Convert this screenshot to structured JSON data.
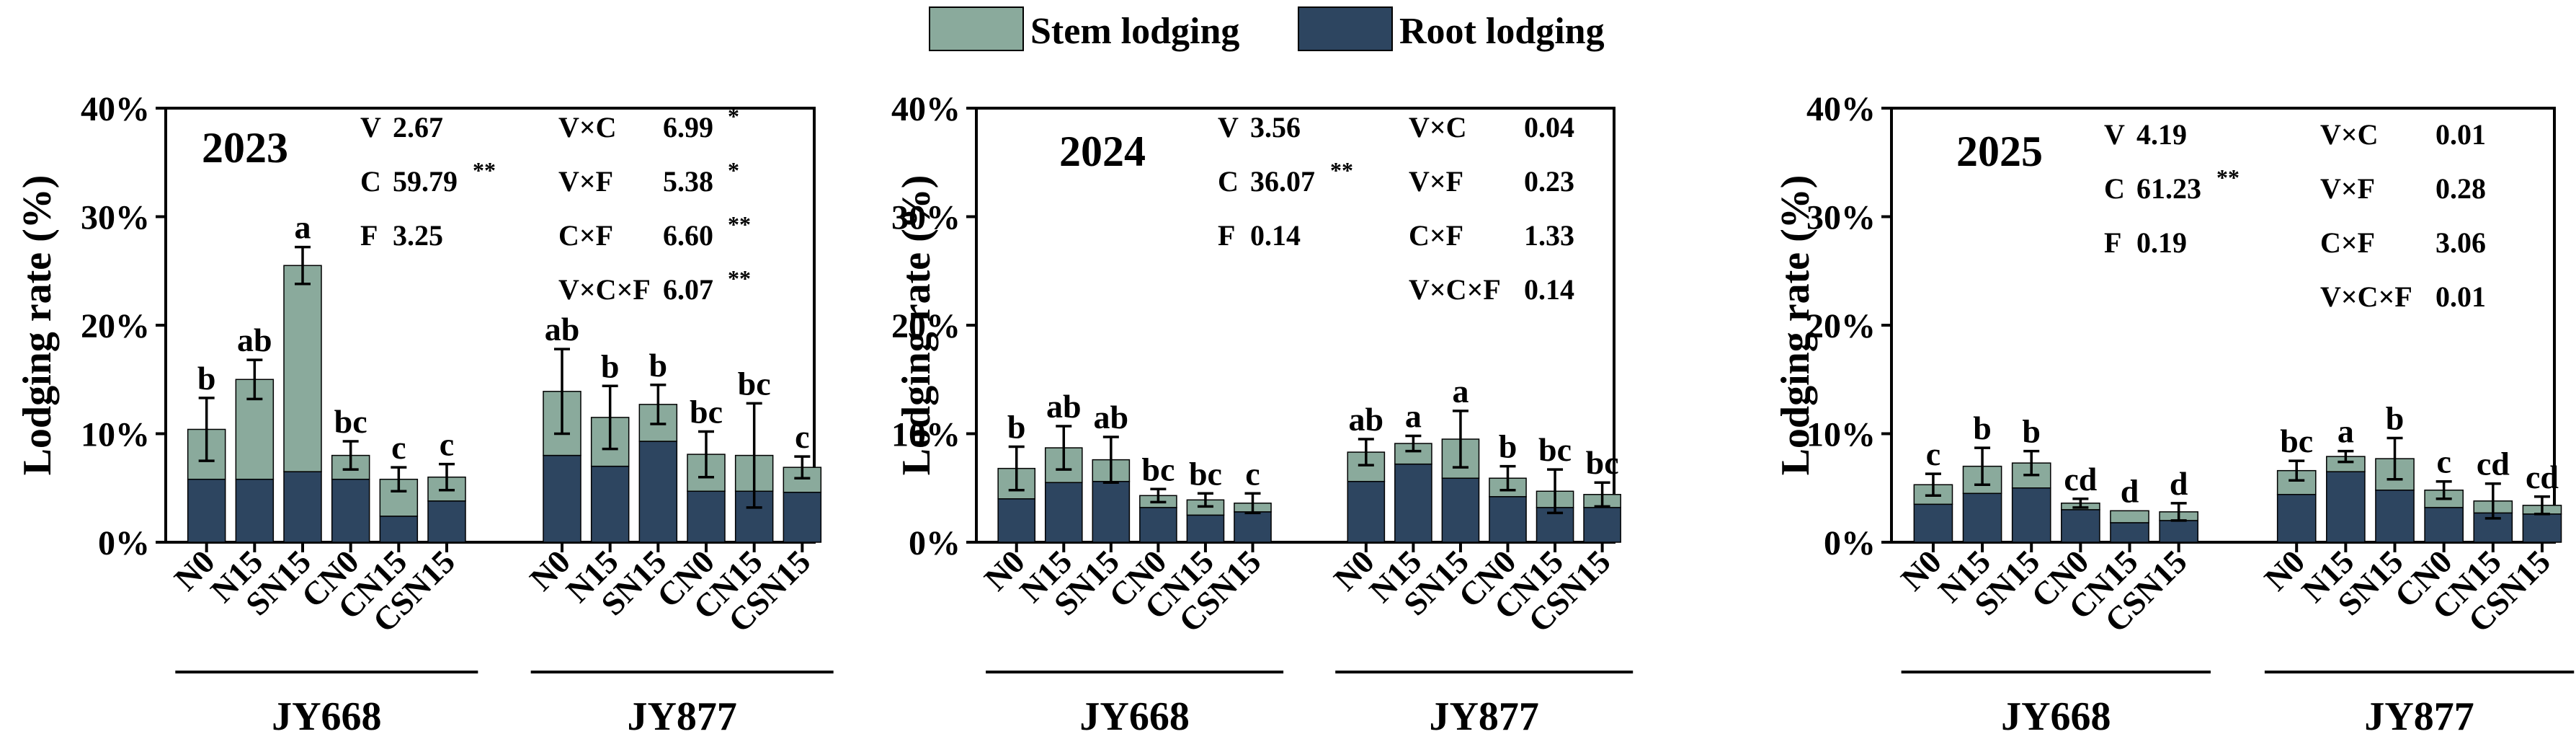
{
  "legend": {
    "items": [
      {
        "label": "Stem lodging",
        "color": "#8aaa9c"
      },
      {
        "label": "Root lodging",
        "color": "#2d4560"
      }
    ]
  },
  "colors": {
    "stem": "#8aaa9c",
    "root": "#2d4560",
    "axis": "#000000"
  },
  "chart_data": [
    {
      "type": "bar",
      "stacked": true,
      "year": "2023",
      "ylabel": "Lodging rate (%)",
      "ylim": [
        0,
        40
      ],
      "yticks": [
        "0%",
        "10%",
        "20%",
        "30%",
        "40%"
      ],
      "categories": [
        "N0",
        "N15",
        "SN15",
        "CN0",
        "CN15",
        "CSN15",
        "N0",
        "N15",
        "SN15",
        "CN0",
        "CN15",
        "CSN15"
      ],
      "groups": [
        {
          "label": "JY668"
        },
        {
          "label": "JY877"
        }
      ],
      "series": [
        {
          "name": "Root lodging",
          "values": [
            5.8,
            5.8,
            6.5,
            5.8,
            2.4,
            3.8,
            8.0,
            7.0,
            9.3,
            4.7,
            4.7,
            4.6
          ]
        },
        {
          "name": "Stem lodging",
          "values": [
            4.6,
            9.2,
            19.0,
            2.2,
            3.4,
            2.2,
            5.9,
            4.5,
            3.4,
            3.4,
            3.3,
            2.3
          ]
        }
      ],
      "totals": [
        10.4,
        15.0,
        25.5,
        8.0,
        5.8,
        6.0,
        13.9,
        11.5,
        12.7,
        8.1,
        8.0,
        6.9
      ],
      "errors": [
        2.9,
        1.8,
        1.7,
        1.3,
        1.1,
        1.2,
        3.9,
        2.9,
        1.8,
        2.1,
        4.8,
        1.0
      ],
      "letters": [
        "b",
        "ab",
        "a",
        "bc",
        "c",
        "c",
        "ab",
        "b",
        "b",
        "bc",
        "bc",
        "c"
      ],
      "stats_main": [
        {
          "label": "V",
          "value": "2.67",
          "sig": ""
        },
        {
          "label": "C",
          "value": "59.79",
          "sig": "**"
        },
        {
          "label": "F",
          "value": "3.25",
          "sig": ""
        }
      ],
      "stats_int": [
        {
          "label": "V×C",
          "value": "6.99",
          "sig": "*"
        },
        {
          "label": "V×F",
          "value": "5.38",
          "sig": "*"
        },
        {
          "label": "C×F",
          "value": "6.60",
          "sig": "**"
        },
        {
          "label": "V×C×F",
          "value": "6.07",
          "sig": "**"
        }
      ]
    },
    {
      "type": "bar",
      "stacked": true,
      "year": "2024",
      "ylabel": "Lodging rate (%)",
      "ylim": [
        0,
        40
      ],
      "yticks": [
        "0%",
        "10%",
        "20%",
        "30%",
        "40%"
      ],
      "categories": [
        "N0",
        "N15",
        "SN15",
        "CN0",
        "CN15",
        "CSN15",
        "N0",
        "N15",
        "SN15",
        "CN0",
        "CN15",
        "CSN15"
      ],
      "groups": [
        {
          "label": "JY668"
        },
        {
          "label": "JY877"
        }
      ],
      "series": [
        {
          "name": "Root lodging",
          "values": [
            4.0,
            5.5,
            5.6,
            3.2,
            2.5,
            2.8,
            5.6,
            7.2,
            5.9,
            4.2,
            3.2,
            3.2
          ]
        },
        {
          "name": "Stem lodging",
          "values": [
            2.8,
            3.2,
            2.0,
            1.1,
            1.4,
            0.8,
            2.7,
            1.9,
            3.6,
            1.7,
            1.5,
            1.2
          ]
        }
      ],
      "totals": [
        6.8,
        8.7,
        7.6,
        4.3,
        3.9,
        3.6,
        8.3,
        9.1,
        9.5,
        5.9,
        4.7,
        4.4
      ],
      "errors": [
        2.0,
        2.0,
        2.1,
        0.6,
        0.6,
        0.9,
        1.2,
        0.7,
        2.6,
        1.1,
        2.0,
        1.1
      ],
      "letters": [
        "b",
        "ab",
        "ab",
        "bc",
        "bc",
        "c",
        "ab",
        "a",
        "a",
        "b",
        "bc",
        "bc"
      ],
      "stats_main": [
        {
          "label": "V",
          "value": "3.56",
          "sig": ""
        },
        {
          "label": "C",
          "value": "36.07",
          "sig": "**"
        },
        {
          "label": "F",
          "value": "0.14",
          "sig": ""
        }
      ],
      "stats_int": [
        {
          "label": "V×C",
          "value": "0.04",
          "sig": ""
        },
        {
          "label": "V×F",
          "value": "0.23",
          "sig": ""
        },
        {
          "label": "C×F",
          "value": "1.33",
          "sig": ""
        },
        {
          "label": "V×C×F",
          "value": "0.14",
          "sig": ""
        }
      ]
    },
    {
      "type": "bar",
      "stacked": true,
      "year": "2025",
      "ylabel": "Lodging rate (%)",
      "ylim": [
        0,
        40
      ],
      "yticks": [
        "0%",
        "10%",
        "20%",
        "30%",
        "40%"
      ],
      "categories": [
        "N0",
        "N15",
        "SN15",
        "CN0",
        "CN15",
        "CSN15",
        "N0",
        "N15",
        "SN15",
        "CN0",
        "CN15",
        "CSN15"
      ],
      "groups": [
        {
          "label": "JY668"
        },
        {
          "label": "JY877"
        }
      ],
      "series": [
        {
          "name": "Root lodging",
          "values": [
            3.5,
            4.5,
            5.0,
            3.0,
            1.8,
            2.0,
            4.4,
            6.5,
            4.8,
            3.2,
            2.7,
            2.6
          ]
        },
        {
          "name": "Stem lodging",
          "values": [
            1.8,
            2.5,
            2.3,
            0.6,
            1.1,
            0.8,
            2.2,
            1.4,
            2.9,
            1.6,
            1.1,
            0.8
          ]
        }
      ],
      "totals": [
        5.3,
        7.0,
        7.3,
        3.6,
        2.9,
        2.8,
        6.6,
        7.9,
        7.7,
        4.8,
        3.8,
        3.4
      ],
      "errors": [
        1.0,
        1.7,
        1.1,
        0.4,
        0.0,
        0.8,
        0.9,
        0.5,
        1.9,
        0.8,
        1.6,
        0.8
      ],
      "letters": [
        "c",
        "b",
        "b",
        "cd",
        "d",
        "d",
        "bc",
        "a",
        "b",
        "c",
        "cd",
        "cd"
      ],
      "stats_main": [
        {
          "label": "V",
          "value": "4.19",
          "sig": ""
        },
        {
          "label": "C",
          "value": "61.23",
          "sig": "**"
        },
        {
          "label": "F",
          "value": "0.19",
          "sig": ""
        }
      ],
      "stats_int": [
        {
          "label": "V×C",
          "value": "0.01",
          "sig": ""
        },
        {
          "label": "V×F",
          "value": "0.28",
          "sig": ""
        },
        {
          "label": "C×F",
          "value": "3.06",
          "sig": ""
        },
        {
          "label": "V×C×F",
          "value": "0.01",
          "sig": ""
        }
      ]
    }
  ]
}
